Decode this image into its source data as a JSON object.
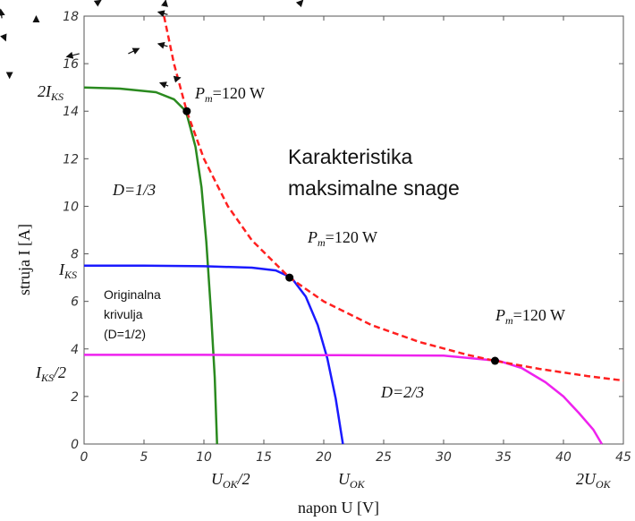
{
  "chart_data": {
    "type": "line",
    "xlabel": "napon U [V]",
    "ylabel": "struja I [A]",
    "xlim": [
      0,
      45
    ],
    "ylim": [
      0,
      18
    ],
    "x_ticks": [
      0,
      5,
      10,
      15,
      20,
      25,
      30,
      35,
      40,
      45
    ],
    "y_ticks": [
      0,
      2,
      4,
      6,
      8,
      10,
      12,
      14,
      16,
      18
    ],
    "grid": false,
    "series": [
      {
        "color": "#2a8a1f",
        "x": [
          0,
          3,
          6,
          7.5,
          8.5,
          9.3,
          9.8,
          10.2,
          10.6,
          10.9,
          11.1
        ],
        "y": [
          15,
          14.95,
          14.8,
          14.5,
          14,
          12.5,
          10.8,
          8.5,
          5.5,
          2.8,
          0
        ]
      },
      {
        "color": "#1a1aff",
        "x": [
          0,
          5,
          10,
          14,
          16,
          17.3,
          18.5,
          19.5,
          20.3,
          21,
          21.6
        ],
        "y": [
          7.5,
          7.5,
          7.48,
          7.42,
          7.3,
          7.0,
          6.2,
          5.0,
          3.6,
          1.9,
          0
        ]
      },
      {
        "color": "#ee22ee",
        "x": [
          0,
          10,
          20,
          30,
          34.6,
          36.5,
          38.5,
          40,
          41.3,
          42.5,
          43.2
        ],
        "y": [
          3.75,
          3.75,
          3.74,
          3.72,
          3.5,
          3.2,
          2.6,
          2.0,
          1.3,
          0.6,
          0
        ]
      },
      {
        "color": "#ff2020",
        "dash": true,
        "x": [
          6.67,
          7.5,
          8.57,
          10,
          12,
          14,
          17.14,
          20,
          24,
          28,
          32,
          34.29,
          38,
          42,
          45
        ],
        "y": [
          18,
          16,
          14,
          12,
          10,
          8.57,
          7,
          6,
          5,
          4.29,
          3.75,
          3.5,
          3.16,
          2.86,
          2.67
        ]
      }
    ],
    "points": [
      {
        "x": 8.57,
        "y": 14,
        "label": "P",
        "sub": "m",
        "text": "=120 W"
      },
      {
        "x": 17.14,
        "y": 7,
        "label": "P",
        "sub": "m",
        "text": "=120 W"
      },
      {
        "x": 34.29,
        "y": 3.5,
        "label": "P",
        "sub": "m",
        "text": "=120 W"
      }
    ],
    "annotations": {
      "d13": "D=1/3",
      "d23": "D=2/3",
      "big": [
        "Karakteristika",
        "maksimalne snage"
      ],
      "orig": [
        "Originalna",
        "krivulja",
        "(D=1/2)"
      ]
    },
    "axis_marks": {
      "y_2iks": {
        "main": "2I",
        "sub": "KS"
      },
      "y_iks": {
        "main": "I",
        "sub": "KS"
      },
      "y_iks2": {
        "main": "I",
        "sub": "KS",
        "tail": "/2"
      },
      "x_uok2": {
        "main": "U",
        "sub": "OK",
        "tail": "/2"
      },
      "x_uok": {
        "main": "U",
        "sub": "OK"
      },
      "x_2uok": {
        "main": "2U",
        "sub": "OK"
      }
    }
  }
}
